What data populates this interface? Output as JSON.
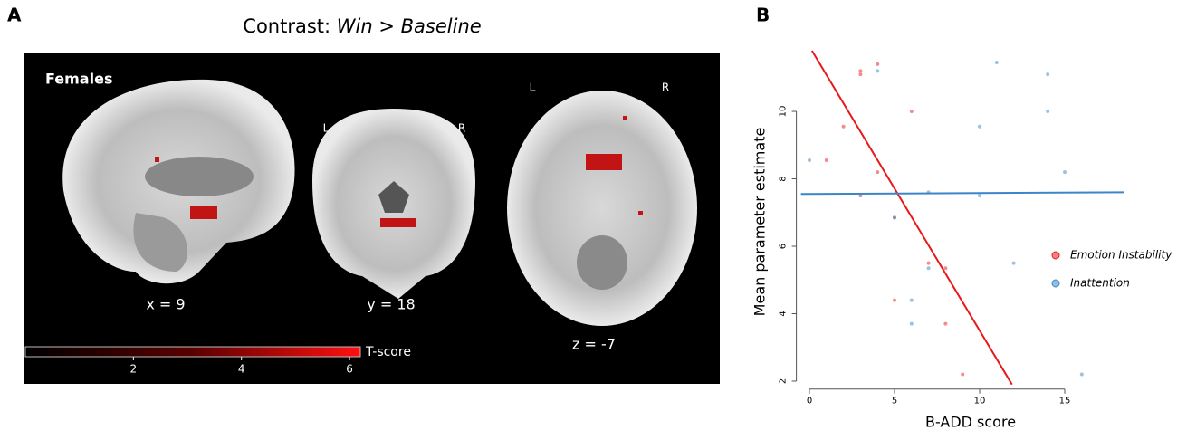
{
  "panel_a": {
    "label": "A",
    "title_prefix": "Contrast:",
    "title_emphasis": "Win > Baseline",
    "group": "Females",
    "views": [
      {
        "label": "x = 9"
      },
      {
        "label": "y = 18",
        "left": "L",
        "right": "R"
      },
      {
        "label": "z = -7",
        "left": "L",
        "right": "R"
      }
    ],
    "colorbar": {
      "label": "T-score",
      "lim": [
        0,
        6.2
      ],
      "ticks": [
        2,
        4,
        6
      ]
    }
  },
  "chart_data": {
    "type": "scatter",
    "panel_label": "B",
    "x_label": "B-ADD score",
    "y_label": "Mean parameter estimate",
    "xlim": [
      -0.5,
      18.5
    ],
    "ylim": [
      1.9,
      11.8
    ],
    "xticks": [
      0,
      5,
      10,
      15
    ],
    "yticks": [
      2,
      4,
      6,
      8,
      10
    ],
    "legend": "right",
    "series": [
      {
        "name": "Emotion Instability",
        "color": "#e8191b",
        "x": [
          3,
          3,
          4,
          2,
          1,
          4,
          6,
          3,
          5,
          7,
          8,
          5,
          8,
          9
        ],
        "values": [
          11.2,
          11.1,
          11.4,
          9.55,
          8.55,
          8.2,
          10,
          7.5,
          6.85,
          5.5,
          5.35,
          4.4,
          3.7,
          2.2
        ],
        "fit": {
          "x": [
            0.15,
            11.9
          ],
          "y": [
            11.8,
            1.9
          ]
        }
      },
      {
        "name": "Inattention",
        "color": "#3a86c8",
        "x": [
          0,
          4,
          11,
          14,
          10,
          14,
          15,
          10,
          7,
          5,
          7,
          12,
          6,
          6,
          16
        ],
        "values": [
          8.55,
          11.2,
          11.45,
          11.1,
          9.55,
          10,
          8.2,
          7.5,
          7.6,
          6.85,
          5.35,
          5.5,
          4.4,
          3.7,
          2.2
        ],
        "fit": {
          "x": [
            -0.5,
            18.5
          ],
          "y": [
            7.55,
            7.6
          ]
        }
      }
    ]
  }
}
